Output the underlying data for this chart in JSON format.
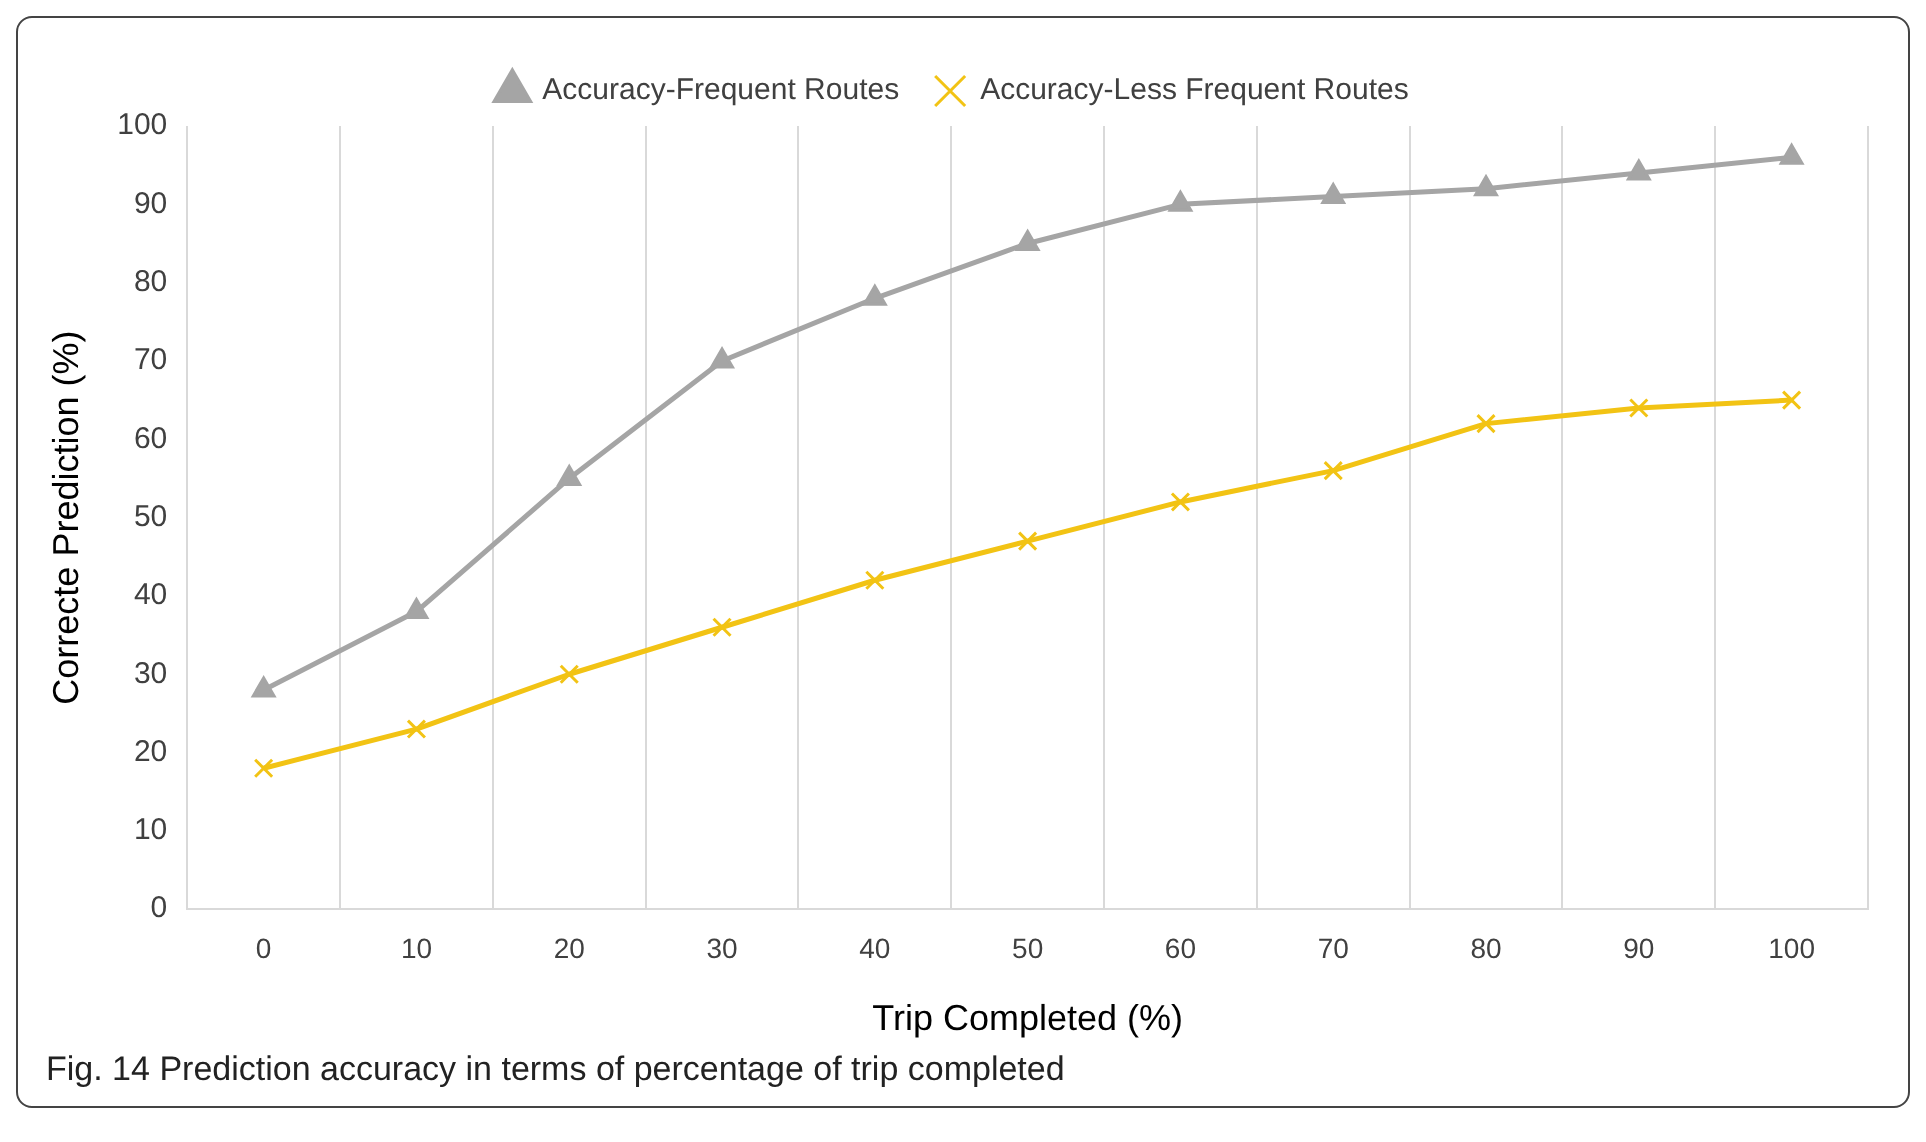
{
  "chart_data": {
    "type": "line",
    "xlabel": "Trip Completed (%)",
    "ylabel": "Correcte Prediction (%)",
    "categories": [
      "0",
      "10",
      "20",
      "30",
      "40",
      "50",
      "60",
      "70",
      "80",
      "90",
      "100"
    ],
    "series": [
      {
        "name": "Accuracy-Frequent Routes",
        "color": "#a5a5a5",
        "marker": "triangle",
        "values": [
          28,
          38,
          55,
          70,
          78,
          85,
          90,
          91,
          92,
          94,
          96
        ]
      },
      {
        "name": "Accuracy-Less Frequent Routes",
        "color": "#f2c314",
        "marker": "cross",
        "values": [
          18,
          23,
          30,
          36,
          42,
          47,
          52,
          56,
          62,
          64,
          65
        ]
      }
    ],
    "ylim": [
      0,
      100
    ],
    "yticks": [
      0,
      10,
      20,
      30,
      40,
      50,
      60,
      70,
      80,
      90,
      100
    ],
    "grid": "x",
    "legend": "top",
    "line_style": "solid",
    "annotations": [
      "Fig. 14  Prediction accuracy in terms of percentage of trip completed"
    ]
  }
}
